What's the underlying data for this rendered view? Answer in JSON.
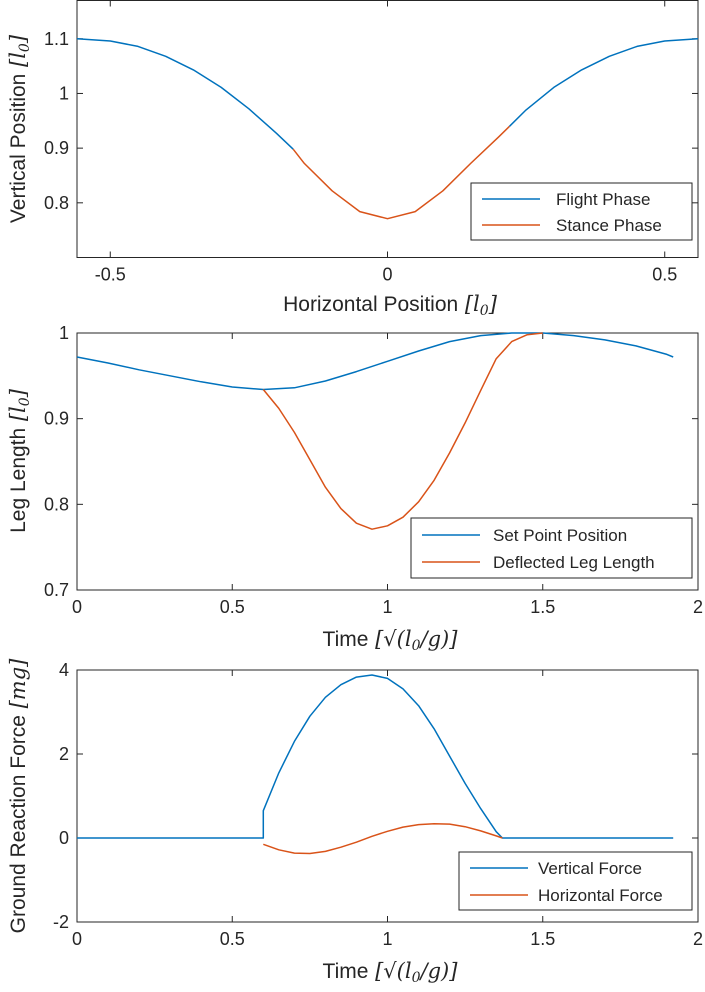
{
  "chart_data": [
    {
      "type": "line",
      "xlabel": "Horizontal Position",
      "xlabel_unit": "l0",
      "ylabel": "Vertical Position",
      "ylabel_unit": "l0",
      "xlim": [
        -0.56,
        0.56
      ],
      "ylim": [
        0.7,
        1.17
      ],
      "xticks": [
        -0.5,
        0,
        0.5
      ],
      "xtick_labels": [
        "-0.5",
        "0",
        "0.5"
      ],
      "yticks": [
        0.8,
        0.9,
        1.0,
        1.1
      ],
      "ytick_labels": [
        "0.8",
        "0.9",
        "1",
        "1.1"
      ],
      "legend": "bottom-right",
      "grid": false,
      "series": [
        {
          "name": "Flight Phase",
          "color": "#0072BD",
          "x": [
            -0.56,
            -0.5,
            -0.45,
            -0.4,
            -0.35,
            -0.3,
            -0.25,
            -0.2,
            -0.17
          ],
          "y": [
            1.1,
            1.096,
            1.086,
            1.068,
            1.043,
            1.011,
            0.972,
            0.927,
            0.898
          ]
        },
        {
          "name": "Stance Phase",
          "color": "#D95319",
          "x": [
            -0.17,
            -0.15,
            -0.1,
            -0.05,
            0,
            0.05,
            0.1,
            0.15,
            0.2,
            0.22
          ],
          "y": [
            0.898,
            0.872,
            0.822,
            0.784,
            0.771,
            0.784,
            0.822,
            0.872,
            0.92,
            0.94
          ]
        },
        {
          "name": "",
          "color": "#0072BD",
          "x": [
            0.22,
            0.25,
            0.3,
            0.35,
            0.4,
            0.45,
            0.5,
            0.56
          ],
          "y": [
            0.94,
            0.97,
            1.011,
            1.043,
            1.068,
            1.086,
            1.096,
            1.1
          ]
        }
      ]
    },
    {
      "type": "line",
      "xlabel": "Time",
      "xlabel_unit": "sqrt(l0/g)",
      "ylabel": "Leg Length",
      "ylabel_unit": "l0",
      "xlim": [
        0,
        2
      ],
      "ylim": [
        0.7,
        1.0
      ],
      "xticks": [
        0,
        0.5,
        1,
        1.5,
        2
      ],
      "xtick_labels": [
        "0",
        "0.5",
        "1",
        "1.5",
        "2"
      ],
      "yticks": [
        0.7,
        0.8,
        0.9,
        1.0
      ],
      "ytick_labels": [
        "0.7",
        "0.8",
        "0.9",
        "1"
      ],
      "legend": "bottom-right",
      "grid": false,
      "series": [
        {
          "name": "Set Point Position",
          "color": "#0072BD",
          "x": [
            0,
            0.1,
            0.2,
            0.3,
            0.4,
            0.5,
            0.6,
            0.7,
            0.8,
            0.9,
            1.0,
            1.1,
            1.2,
            1.3,
            1.4,
            1.5,
            1.6,
            1.7,
            1.8,
            1.9,
            1.92
          ],
          "y": [
            0.972,
            0.965,
            0.957,
            0.95,
            0.943,
            0.937,
            0.934,
            0.936,
            0.944,
            0.955,
            0.967,
            0.979,
            0.99,
            0.997,
            1.0,
            1.0,
            0.997,
            0.992,
            0.985,
            0.975,
            0.972
          ]
        },
        {
          "name": "Deflected Leg Length",
          "color": "#D95319",
          "x": [
            0.6,
            0.65,
            0.7,
            0.75,
            0.8,
            0.85,
            0.9,
            0.95,
            1.0,
            1.05,
            1.1,
            1.15,
            1.2,
            1.25,
            1.3,
            1.35,
            1.4,
            1.45,
            1.5
          ],
          "y": [
            0.934,
            0.912,
            0.884,
            0.852,
            0.82,
            0.795,
            0.778,
            0.771,
            0.775,
            0.785,
            0.803,
            0.828,
            0.86,
            0.895,
            0.933,
            0.97,
            0.99,
            0.998,
            1.0
          ]
        }
      ]
    },
    {
      "type": "line",
      "xlabel": "Time",
      "xlabel_unit": "sqrt(l0/g)",
      "ylabel": "Ground Reaction Force",
      "ylabel_unit": "mg",
      "xlim": [
        0,
        2
      ],
      "ylim": [
        -2,
        4
      ],
      "xticks": [
        0,
        0.5,
        1,
        1.5,
        2
      ],
      "xtick_labels": [
        "0",
        "0.5",
        "1",
        "1.5",
        "2"
      ],
      "yticks": [
        -2,
        0,
        2,
        4
      ],
      "ytick_labels": [
        "-2",
        "0",
        "2",
        "4"
      ],
      "legend": "bottom-right",
      "grid": false,
      "series": [
        {
          "name": "Vertical Force",
          "color": "#0072BD",
          "x": [
            0,
            0.6,
            0.6,
            0.65,
            0.7,
            0.75,
            0.8,
            0.85,
            0.9,
            0.95,
            1.0,
            1.05,
            1.1,
            1.15,
            1.2,
            1.25,
            1.3,
            1.35,
            1.37,
            1.5,
            1.92
          ],
          "y": [
            0,
            0,
            0.65,
            1.55,
            2.3,
            2.9,
            3.35,
            3.65,
            3.83,
            3.88,
            3.8,
            3.55,
            3.15,
            2.6,
            1.95,
            1.3,
            0.7,
            0.15,
            0,
            0,
            0
          ]
        },
        {
          "name": "Horizontal Force",
          "color": "#D95319",
          "x": [
            0.6,
            0.65,
            0.7,
            0.75,
            0.8,
            0.85,
            0.9,
            0.95,
            1.0,
            1.05,
            1.1,
            1.15,
            1.2,
            1.25,
            1.3,
            1.35,
            1.37
          ],
          "y": [
            -0.15,
            -0.28,
            -0.36,
            -0.37,
            -0.32,
            -0.22,
            -0.1,
            0.04,
            0.16,
            0.26,
            0.32,
            0.34,
            0.33,
            0.27,
            0.17,
            0.05,
            0
          ]
        }
      ]
    }
  ]
}
